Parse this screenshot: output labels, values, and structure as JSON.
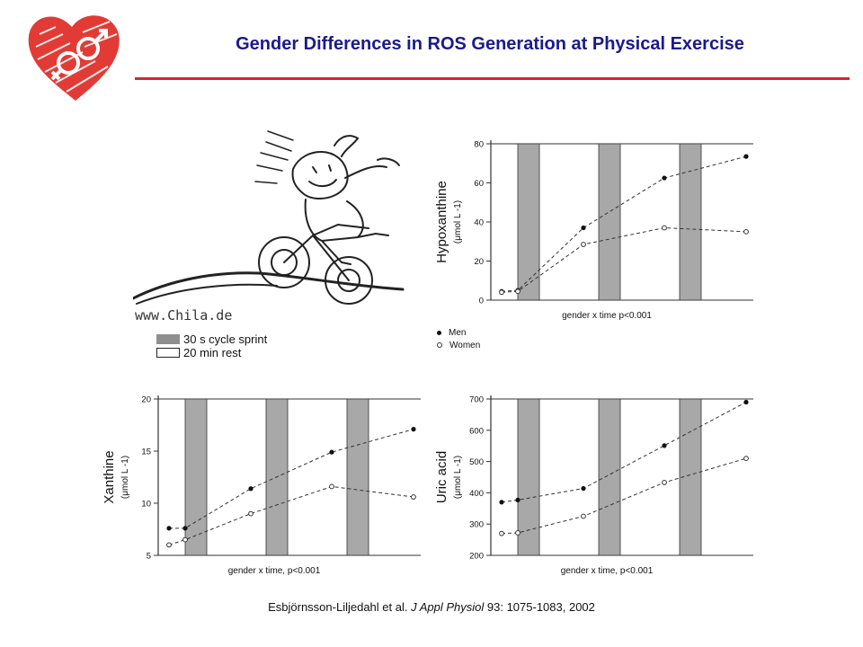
{
  "header": {
    "title": "Gender Differences in ROS Generation at Physical Exercise"
  },
  "colors": {
    "title": "#1a1a8c",
    "accent": "#d4262b",
    "bar": "#a8a8a8"
  },
  "legend_shading": [
    {
      "label": "30 s cycle sprint",
      "style": "filled"
    },
    {
      "label": "20 min rest",
      "style": "empty"
    }
  ],
  "legend_symbols": [
    {
      "label": "Men",
      "symbol": "filled-circle"
    },
    {
      "label": "Women",
      "symbol": "open-circle"
    }
  ],
  "cartoon": {
    "watermark": "www.Chila.de"
  },
  "citation": {
    "authors": "Esbjörnsson-Liljedahl et al.",
    "journal": "J Appl Physiol",
    "details": "93: 1075-1083, 2002"
  },
  "chart_data": [
    {
      "id": "hypoxanthine",
      "type": "line",
      "ylabel": "Hypoxanthine",
      "yunit": "(μmol L -1)",
      "xlabel": "gender x time p<0.001",
      "ylim": [
        0,
        80
      ],
      "yticks": [
        0,
        20,
        40,
        60,
        80
      ],
      "sprint_bars": 3,
      "series": [
        {
          "name": "Men",
          "marker": "filled",
          "values": [
            4.5,
            5,
            37,
            62.5,
            73.5
          ]
        },
        {
          "name": "Women",
          "marker": "open",
          "values": [
            4,
            4.5,
            28.5,
            37,
            35
          ]
        }
      ]
    },
    {
      "id": "xanthine",
      "type": "line",
      "ylabel": "Xanthine",
      "yunit": "(μmol L -1)",
      "xlabel": "gender x time, p<0.001",
      "ylim": [
        5,
        20
      ],
      "yticks": [
        5,
        10,
        15,
        20
      ],
      "sprint_bars": 3,
      "series": [
        {
          "name": "Men",
          "marker": "filled",
          "values": [
            7.6,
            7.6,
            11.4,
            14.9,
            17.1
          ]
        },
        {
          "name": "Women",
          "marker": "open",
          "values": [
            6,
            6.5,
            9,
            11.6,
            10.6
          ]
        }
      ]
    },
    {
      "id": "uric-acid",
      "type": "line",
      "ylabel": "Uric acid",
      "yunit": "(μmol L -1)",
      "xlabel": "gender x time, p<0.001",
      "ylim": [
        200,
        700
      ],
      "yticks": [
        200,
        300,
        400,
        500,
        600,
        700
      ],
      "sprint_bars": 3,
      "series": [
        {
          "name": "Men",
          "marker": "filled",
          "values": [
            370,
            377,
            414,
            551,
            690
          ]
        },
        {
          "name": "Women",
          "marker": "open",
          "values": [
            270,
            272,
            325,
            433,
            510
          ]
        }
      ]
    }
  ]
}
